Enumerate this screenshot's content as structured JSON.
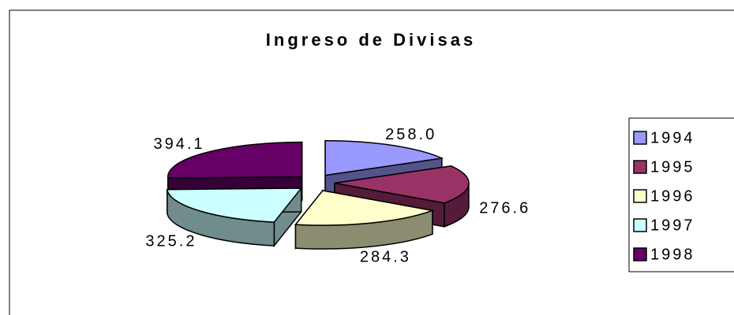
{
  "chart_data": {
    "type": "pie",
    "title": "Ingreso de Divisas",
    "categories": [
      "1994",
      "1995",
      "1996",
      "1997",
      "1998"
    ],
    "values": [
      258.0,
      276.6,
      284.3,
      325.2,
      394.1
    ],
    "value_labels": [
      "258.0",
      "276.6",
      "284.3",
      "325.2",
      "394.1"
    ],
    "colors": [
      "#9999ff",
      "#993366",
      "#ffffcc",
      "#ccffff",
      "#660066"
    ],
    "legend": "right",
    "exploded": true,
    "three_d": true
  }
}
